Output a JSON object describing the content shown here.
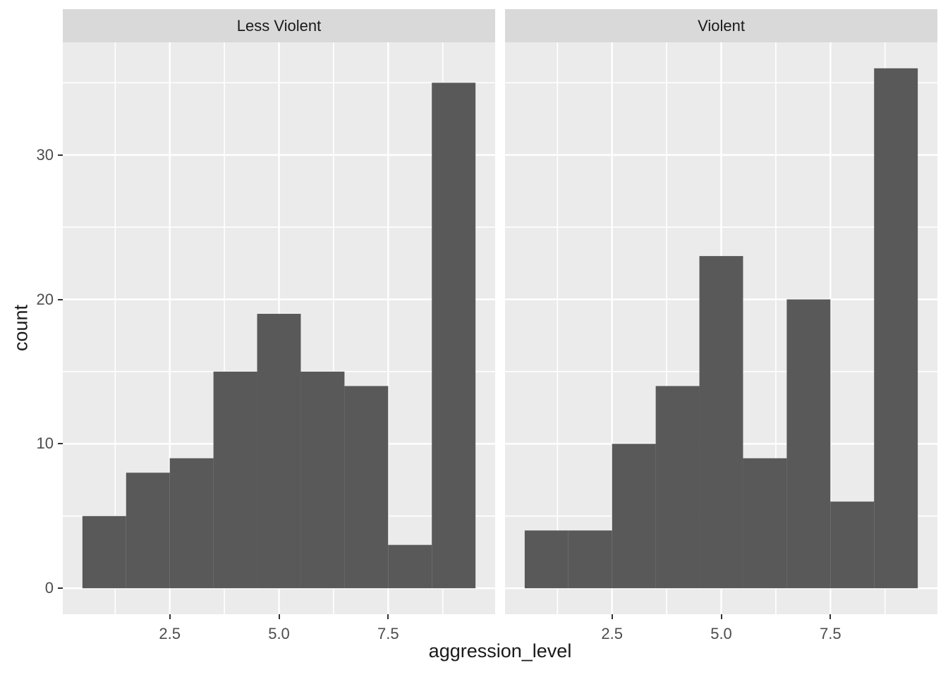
{
  "chart_data": {
    "type": "histogram",
    "title": "",
    "xlabel": "aggression_level",
    "ylabel": "count",
    "bin_centers": [
      1,
      2,
      3,
      4,
      5,
      6,
      7,
      8,
      9
    ],
    "bin_width": 1,
    "facets": [
      {
        "label": "Less Violent",
        "counts": [
          5,
          8,
          9,
          15,
          19,
          15,
          14,
          3,
          35
        ]
      },
      {
        "label": "Violent",
        "counts": [
          4,
          4,
          10,
          14,
          23,
          9,
          20,
          6,
          36
        ]
      }
    ],
    "x_domain": [
      0.05,
      9.95
    ],
    "y_domain": [
      -1.8,
      37.8
    ],
    "x_major_ticks": [
      2.5,
      5.0,
      7.5
    ],
    "x_major_tick_labels": [
      "2.5",
      "5.0",
      "7.5"
    ],
    "x_minor_ticks": [
      1.25,
      3.75,
      6.25,
      8.75
    ],
    "y_major_ticks": [
      0,
      10,
      20,
      30
    ],
    "y_major_tick_labels": [
      "0",
      "10",
      "20",
      "30"
    ],
    "y_minor_ticks": [
      5,
      15,
      25,
      35
    ],
    "grid": true,
    "legend": "none"
  },
  "style": {
    "bar_fill": "#595959",
    "panel_bg": "#EBEBEB",
    "strip_bg": "#D9D9D9",
    "grid_color": "#FFFFFF",
    "tick_label_color": "#4D4D4D",
    "tick_mark_color": "#333333",
    "title_color": "#1A1A1A",
    "figure_bg": "#FFFFFF"
  }
}
